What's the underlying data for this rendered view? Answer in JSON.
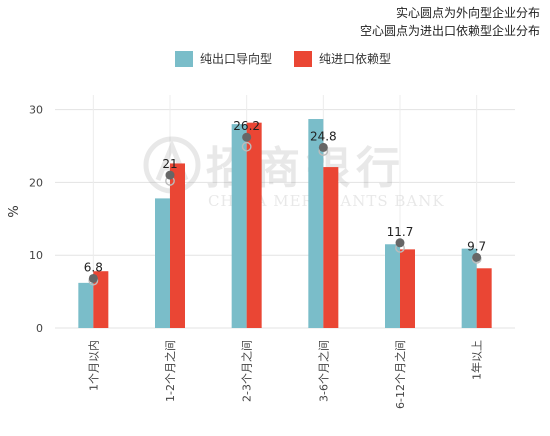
{
  "notes": {
    "line1": "实心圆点为外向型企业分布",
    "line2": "空心圆点为进出口依赖型企业分布"
  },
  "watermark": {
    "cn": "招商银行",
    "en": "CHINA MERCHANTS BANK"
  },
  "colors": {
    "export": "#7ABDC9",
    "import": "#EA4634",
    "dot": "#666666"
  },
  "chart_data": {
    "type": "bar",
    "ylabel": "%",
    "ylim": [
      0,
      32
    ],
    "yticks": [
      0,
      10,
      20,
      30
    ],
    "categories": [
      "1个月以内",
      "1-2个月之间",
      "2-3个月之间",
      "3-6个月之间",
      "6-12个月之间",
      "1年以上"
    ],
    "series": [
      {
        "name": "纯出口导向型",
        "values": [
          6.2,
          17.8,
          28.0,
          28.7,
          11.5,
          10.9
        ]
      },
      {
        "name": "纯进口依赖型",
        "values": [
          7.8,
          22.6,
          28.2,
          22.1,
          10.8,
          8.2
        ]
      }
    ],
    "dots": {
      "solid": [
        6.8,
        21.0,
        26.2,
        24.8,
        11.7,
        9.7
      ],
      "hollow": [
        6.5,
        20.2,
        24.9,
        24.3,
        11.0,
        9.5
      ]
    },
    "data_labels": [
      "6.8",
      "21",
      "26.2",
      "24.8",
      "11.7",
      "9.7"
    ]
  }
}
